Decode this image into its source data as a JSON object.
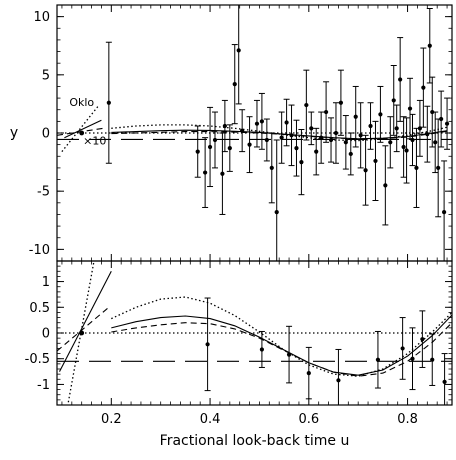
{
  "chart_data": {
    "type": "scatter",
    "xlabel": "Fractional look-back time u",
    "x_ticks": [
      "0.2",
      "0.4",
      "0.6",
      "0.8"
    ],
    "xlim": [
      0.09,
      0.89
    ],
    "grid": false,
    "legend": "none",
    "colors": {
      "ink": "#000000",
      "background": "#ffffff"
    },
    "panels": [
      {
        "id": "top",
        "ylabel": "y",
        "ylim": [
          -11,
          11
        ],
        "y_ticks": [
          10,
          5,
          0,
          -5,
          -10
        ],
        "annotations": [
          {
            "text": "Oklo",
            "x": 0.115,
            "y": 2.3
          },
          {
            "text": "×10",
            "x": 0.143,
            "y": -1.0
          }
        ],
        "reference_point": {
          "name": "Oklo",
          "x": 0.14,
          "y": 0.0
        },
        "points": [
          {
            "x": 0.195,
            "y": 2.6,
            "err": 5.2
          },
          {
            "x": 0.375,
            "y": -1.6,
            "err": 2.2
          },
          {
            "x": 0.39,
            "y": -3.4,
            "err": 3.0
          },
          {
            "x": 0.4,
            "y": -1.2,
            "err": 3.4
          },
          {
            "x": 0.41,
            "y": -0.6,
            "err": 2.4
          },
          {
            "x": 0.425,
            "y": -3.5,
            "err": 3.5
          },
          {
            "x": 0.43,
            "y": 0.6,
            "err": 2.2
          },
          {
            "x": 0.44,
            "y": -1.3,
            "err": 2.0
          },
          {
            "x": 0.45,
            "y": 4.2,
            "err": 3.4
          },
          {
            "x": 0.458,
            "y": 7.1,
            "err": 4.6
          },
          {
            "x": 0.465,
            "y": 0.2,
            "err": 1.8
          },
          {
            "x": 0.48,
            "y": -1.0,
            "err": 2.4
          },
          {
            "x": 0.495,
            "y": 0.8,
            "err": 2.0
          },
          {
            "x": 0.505,
            "y": 1.0,
            "err": 2.4
          },
          {
            "x": 0.515,
            "y": -0.6,
            "err": 1.8
          },
          {
            "x": 0.525,
            "y": -3.0,
            "err": 3.0
          },
          {
            "x": 0.535,
            "y": -6.8,
            "err": 6.2
          },
          {
            "x": 0.545,
            "y": -0.4,
            "err": 2.2
          },
          {
            "x": 0.555,
            "y": 0.9,
            "err": 2.0
          },
          {
            "x": 0.565,
            "y": -0.2,
            "err": 2.6
          },
          {
            "x": 0.575,
            "y": -1.3,
            "err": 2.4
          },
          {
            "x": 0.585,
            "y": -2.5,
            "err": 2.8
          },
          {
            "x": 0.595,
            "y": 2.4,
            "err": 3.0
          },
          {
            "x": 0.605,
            "y": 0.4,
            "err": 1.4
          },
          {
            "x": 0.615,
            "y": -1.6,
            "err": 2.0
          },
          {
            "x": 0.625,
            "y": -0.4,
            "err": 2.2
          },
          {
            "x": 0.635,
            "y": 1.8,
            "err": 2.6
          },
          {
            "x": 0.645,
            "y": -0.6,
            "err": 1.9
          },
          {
            "x": 0.655,
            "y": 0.0,
            "err": 2.6
          },
          {
            "x": 0.665,
            "y": 2.6,
            "err": 2.8
          },
          {
            "x": 0.675,
            "y": -0.8,
            "err": 2.3
          },
          {
            "x": 0.685,
            "y": -1.8,
            "err": 1.8
          },
          {
            "x": 0.695,
            "y": 1.4,
            "err": 2.6
          },
          {
            "x": 0.705,
            "y": -0.2,
            "err": 2.8
          },
          {
            "x": 0.715,
            "y": -3.2,
            "err": 3.0
          },
          {
            "x": 0.725,
            "y": 0.6,
            "err": 2.0
          },
          {
            "x": 0.735,
            "y": -2.4,
            "err": 3.4
          },
          {
            "x": 0.745,
            "y": 1.6,
            "err": 2.4
          },
          {
            "x": 0.755,
            "y": -4.5,
            "err": 3.4
          },
          {
            "x": 0.765,
            "y": -0.8,
            "err": 2.2
          },
          {
            "x": 0.772,
            "y": 2.8,
            "err": 3.0
          },
          {
            "x": 0.778,
            "y": 0.4,
            "err": 2.0
          },
          {
            "x": 0.785,
            "y": 4.6,
            "err": 3.6
          },
          {
            "x": 0.792,
            "y": -1.2,
            "err": 2.6
          },
          {
            "x": 0.798,
            "y": -1.5,
            "err": 2.8
          },
          {
            "x": 0.805,
            "y": 2.1,
            "err": 2.6
          },
          {
            "x": 0.81,
            "y": -0.6,
            "err": 2.2
          },
          {
            "x": 0.818,
            "y": -3.0,
            "err": 3.4
          },
          {
            "x": 0.825,
            "y": 0.4,
            "err": 2.4
          },
          {
            "x": 0.832,
            "y": 3.9,
            "err": 3.4
          },
          {
            "x": 0.84,
            "y": -0.1,
            "err": 2.4
          },
          {
            "x": 0.845,
            "y": 7.5,
            "err": 3.2
          },
          {
            "x": 0.85,
            "y": 1.8,
            "err": 3.0
          },
          {
            "x": 0.856,
            "y": -0.8,
            "err": 2.6
          },
          {
            "x": 0.862,
            "y": -3.0,
            "err": 4.2
          },
          {
            "x": 0.868,
            "y": 1.2,
            "err": 2.4
          },
          {
            "x": 0.874,
            "y": -6.8,
            "err": 4.4
          },
          {
            "x": 0.88,
            "y": 0.8,
            "err": 2.2
          }
        ],
        "curves": [
          {
            "style": "solid",
            "x": [
              0.2,
              0.25,
              0.3,
              0.35,
              0.4,
              0.45,
              0.5,
              0.55,
              0.6,
              0.65,
              0.7,
              0.75,
              0.8,
              0.85,
              0.88
            ],
            "y": [
              0.05,
              0.12,
              0.2,
              0.24,
              0.22,
              0.15,
              0.05,
              -0.1,
              -0.25,
              -0.4,
              -0.5,
              -0.45,
              -0.3,
              0.0,
              0.2
            ]
          },
          {
            "style": "dotted",
            "x": [
              0.2,
              0.25,
              0.3,
              0.35,
              0.4,
              0.45,
              0.5,
              0.55,
              0.6,
              0.65,
              0.7,
              0.75,
              0.8,
              0.85,
              0.88
            ],
            "y": [
              0.4,
              0.6,
              0.7,
              0.7,
              0.6,
              0.4,
              0.15,
              -0.15,
              -0.4,
              -0.6,
              -0.65,
              -0.5,
              -0.2,
              0.2,
              0.5
            ]
          },
          {
            "style": "short-dash",
            "x": [
              0.2,
              0.25,
              0.3,
              0.35,
              0.4,
              0.45,
              0.5,
              0.55,
              0.6,
              0.65,
              0.7,
              0.75,
              0.8,
              0.85,
              0.88
            ],
            "y": [
              -0.05,
              0.0,
              0.06,
              0.12,
              0.12,
              0.08,
              0.0,
              -0.12,
              -0.28,
              -0.42,
              -0.5,
              -0.48,
              -0.35,
              -0.05,
              0.15
            ]
          },
          {
            "style": "long-dash",
            "x": [
              0.09,
              0.89
            ],
            "y": [
              -0.55,
              -0.55
            ]
          },
          {
            "style": "dotted",
            "x": [
              0.09,
              0.89
            ],
            "y": [
              0.0,
              0.0
            ]
          },
          {
            "style": "solid",
            "x": [
              0.105,
              0.18
            ],
            "y": [
              -0.4,
              1.1
            ]
          },
          {
            "style": "dotted",
            "x": [
              0.1,
              0.175
            ],
            "y": [
              -1.6,
              2.4
            ]
          },
          {
            "style": "short-dash",
            "x": [
              0.09,
              0.19
            ],
            "y": [
              -0.2,
              0.45
            ]
          }
        ]
      },
      {
        "id": "bottom",
        "ylabel": "",
        "ylim": [
          -1.4,
          1.4
        ],
        "y_ticks": [
          1,
          0.5,
          0,
          -0.5,
          -1
        ],
        "reference_point": {
          "name": "Oklo",
          "x": 0.14,
          "y": 0.0
        },
        "points": [
          {
            "x": 0.395,
            "y": -0.22,
            "err": 0.9
          },
          {
            "x": 0.505,
            "y": -0.32,
            "err": 0.35
          },
          {
            "x": 0.56,
            "y": -0.42,
            "err": 0.55
          },
          {
            "x": 0.6,
            "y": -0.78,
            "err": 0.5
          },
          {
            "x": 0.66,
            "y": -0.92,
            "err": 0.6
          },
          {
            "x": 0.74,
            "y": -0.52,
            "err": 0.55
          },
          {
            "x": 0.79,
            "y": -0.3,
            "err": 0.6
          },
          {
            "x": 0.81,
            "y": -0.5,
            "err": 0.6
          },
          {
            "x": 0.83,
            "y": -0.12,
            "err": 0.55
          },
          {
            "x": 0.85,
            "y": -0.52,
            "err": 0.5
          },
          {
            "x": 0.875,
            "y": -0.95,
            "err": 0.55
          }
        ],
        "curves": [
          {
            "style": "solid",
            "x": [
              0.2,
              0.25,
              0.3,
              0.35,
              0.4,
              0.45,
              0.5,
              0.55,
              0.6,
              0.65,
              0.7,
              0.75,
              0.8,
              0.85,
              0.89
            ],
            "y": [
              0.1,
              0.22,
              0.3,
              0.33,
              0.28,
              0.14,
              -0.08,
              -0.33,
              -0.58,
              -0.76,
              -0.82,
              -0.72,
              -0.45,
              -0.05,
              0.35
            ]
          },
          {
            "style": "dotted",
            "x": [
              0.2,
              0.25,
              0.3,
              0.35,
              0.4,
              0.45,
              0.5,
              0.55,
              0.6,
              0.65,
              0.7,
              0.75,
              0.8,
              0.85,
              0.89
            ],
            "y": [
              0.28,
              0.5,
              0.66,
              0.7,
              0.58,
              0.34,
              0.02,
              -0.33,
              -0.62,
              -0.8,
              -0.84,
              -0.7,
              -0.4,
              0.02,
              0.4
            ]
          },
          {
            "style": "short-dash",
            "x": [
              0.2,
              0.25,
              0.3,
              0.35,
              0.4,
              0.45,
              0.5,
              0.55,
              0.6,
              0.65,
              0.7,
              0.75,
              0.8,
              0.85,
              0.89
            ],
            "y": [
              0.02,
              0.1,
              0.16,
              0.2,
              0.18,
              0.08,
              -0.1,
              -0.34,
              -0.58,
              -0.76,
              -0.84,
              -0.78,
              -0.55,
              -0.18,
              0.2
            ]
          },
          {
            "style": "long-dash",
            "x": [
              0.09,
              0.89
            ],
            "y": [
              -0.55,
              -0.55
            ]
          },
          {
            "style": "dotted",
            "x": [
              0.09,
              0.89
            ],
            "y": [
              0.0,
              0.0
            ]
          },
          {
            "style": "solid",
            "x": [
              0.095,
              0.2
            ],
            "y": [
              -0.75,
              1.2
            ]
          },
          {
            "style": "dotted",
            "x": [
              0.11,
              0.165
            ],
            "y": [
              -1.5,
              1.4
            ]
          },
          {
            "style": "short-dash",
            "x": [
              0.09,
              0.195
            ],
            "y": [
              -0.35,
              0.5
            ]
          }
        ]
      }
    ]
  }
}
